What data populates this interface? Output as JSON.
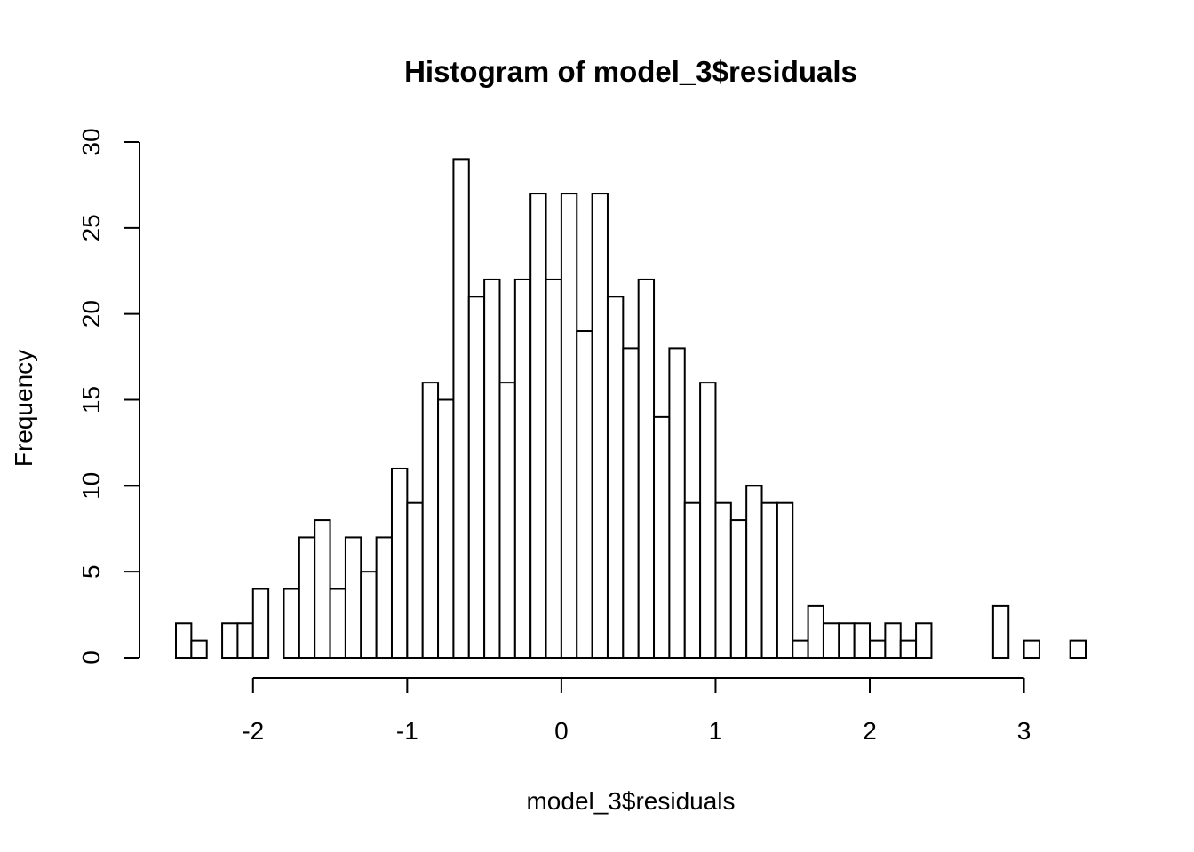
{
  "chart_data": {
    "type": "bar",
    "title": "Histogram of model_3$residuals",
    "xlabel": "model_3$residuals",
    "ylabel": "Frequency",
    "x_ticks": [
      -2,
      -1,
      0,
      1,
      2,
      3
    ],
    "y_ticks": [
      0,
      5,
      10,
      15,
      20,
      25,
      30
    ],
    "xlim": [
      -2.5,
      3.4
    ],
    "ylim": [
      0,
      30
    ],
    "bin_width": 0.1,
    "bin_start": -2.5,
    "grid": false,
    "bars": [
      {
        "x0": -2.5,
        "x1": -2.4,
        "count": 2
      },
      {
        "x0": -2.4,
        "x1": -2.3,
        "count": 1
      },
      {
        "x0": -2.3,
        "x1": -2.2,
        "count": 0
      },
      {
        "x0": -2.2,
        "x1": -2.1,
        "count": 2
      },
      {
        "x0": -2.1,
        "x1": -2.0,
        "count": 2
      },
      {
        "x0": -2.0,
        "x1": -1.9,
        "count": 4
      },
      {
        "x0": -1.9,
        "x1": -1.8,
        "count": 0
      },
      {
        "x0": -1.8,
        "x1": -1.7,
        "count": 4
      },
      {
        "x0": -1.7,
        "x1": -1.6,
        "count": 7
      },
      {
        "x0": -1.6,
        "x1": -1.5,
        "count": 8
      },
      {
        "x0": -1.5,
        "x1": -1.4,
        "count": 4
      },
      {
        "x0": -1.4,
        "x1": -1.3,
        "count": 7
      },
      {
        "x0": -1.3,
        "x1": -1.2,
        "count": 5
      },
      {
        "x0": -1.2,
        "x1": -1.1,
        "count": 7
      },
      {
        "x0": -1.1,
        "x1": -1.0,
        "count": 11
      },
      {
        "x0": -1.0,
        "x1": -0.9,
        "count": 9
      },
      {
        "x0": -0.9,
        "x1": -0.8,
        "count": 16
      },
      {
        "x0": -0.8,
        "x1": -0.7,
        "count": 15
      },
      {
        "x0": -0.7,
        "x1": -0.6,
        "count": 29
      },
      {
        "x0": -0.6,
        "x1": -0.5,
        "count": 21
      },
      {
        "x0": -0.5,
        "x1": -0.4,
        "count": 22
      },
      {
        "x0": -0.4,
        "x1": -0.3,
        "count": 16
      },
      {
        "x0": -0.3,
        "x1": -0.2,
        "count": 22
      },
      {
        "x0": -0.2,
        "x1": -0.1,
        "count": 27
      },
      {
        "x0": -0.1,
        "x1": 0.0,
        "count": 22
      },
      {
        "x0": 0.0,
        "x1": 0.1,
        "count": 27
      },
      {
        "x0": 0.1,
        "x1": 0.2,
        "count": 19
      },
      {
        "x0": 0.2,
        "x1": 0.3,
        "count": 27
      },
      {
        "x0": 0.3,
        "x1": 0.4,
        "count": 21
      },
      {
        "x0": 0.4,
        "x1": 0.5,
        "count": 18
      },
      {
        "x0": 0.5,
        "x1": 0.6,
        "count": 22
      },
      {
        "x0": 0.6,
        "x1": 0.7,
        "count": 14
      },
      {
        "x0": 0.7,
        "x1": 0.8,
        "count": 18
      },
      {
        "x0": 0.8,
        "x1": 0.9,
        "count": 9
      },
      {
        "x0": 0.9,
        "x1": 1.0,
        "count": 16
      },
      {
        "x0": 1.0,
        "x1": 1.1,
        "count": 9
      },
      {
        "x0": 1.1,
        "x1": 1.2,
        "count": 8
      },
      {
        "x0": 1.2,
        "x1": 1.3,
        "count": 10
      },
      {
        "x0": 1.3,
        "x1": 1.4,
        "count": 9
      },
      {
        "x0": 1.4,
        "x1": 1.5,
        "count": 9
      },
      {
        "x0": 1.5,
        "x1": 1.6,
        "count": 1
      },
      {
        "x0": 1.6,
        "x1": 1.7,
        "count": 3
      },
      {
        "x0": 1.7,
        "x1": 1.8,
        "count": 2
      },
      {
        "x0": 1.8,
        "x1": 1.9,
        "count": 2
      },
      {
        "x0": 1.9,
        "x1": 2.0,
        "count": 2
      },
      {
        "x0": 2.0,
        "x1": 2.1,
        "count": 1
      },
      {
        "x0": 2.1,
        "x1": 2.2,
        "count": 2
      },
      {
        "x0": 2.2,
        "x1": 2.3,
        "count": 1
      },
      {
        "x0": 2.3,
        "x1": 2.4,
        "count": 2
      },
      {
        "x0": 2.4,
        "x1": 2.5,
        "count": 0
      },
      {
        "x0": 2.5,
        "x1": 2.6,
        "count": 0
      },
      {
        "x0": 2.6,
        "x1": 2.7,
        "count": 0
      },
      {
        "x0": 2.7,
        "x1": 2.8,
        "count": 0
      },
      {
        "x0": 2.8,
        "x1": 2.9,
        "count": 3
      },
      {
        "x0": 2.9,
        "x1": 3.0,
        "count": 0
      },
      {
        "x0": 3.0,
        "x1": 3.1,
        "count": 1
      },
      {
        "x0": 3.1,
        "x1": 3.2,
        "count": 0
      },
      {
        "x0": 3.2,
        "x1": 3.3,
        "count": 0
      },
      {
        "x0": 3.3,
        "x1": 3.4,
        "count": 1
      }
    ],
    "bar_fill": "#ffffff",
    "bar_stroke": "#000000"
  }
}
